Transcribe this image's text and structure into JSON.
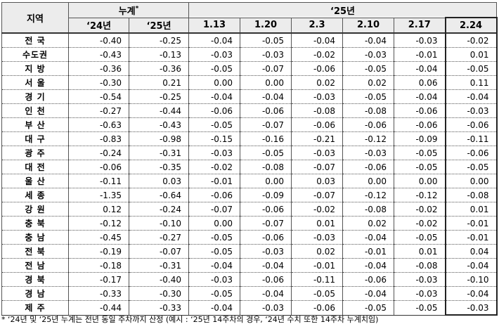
{
  "table": {
    "header": {
      "region": "지역",
      "cumulative": "누계",
      "cumulative_mark": "*",
      "year": "‘25년",
      "columns": [
        "‘24년",
        "‘25년",
        "1.13",
        "1.20",
        "2.3",
        "2.10",
        "2.17",
        "2.24"
      ]
    },
    "rows": [
      {
        "region": "전 국",
        "values": [
          "-0.40",
          "-0.25",
          "-0.04",
          "-0.05",
          "-0.04",
          "-0.04",
          "-0.03",
          "-0.02"
        ]
      },
      {
        "region": "수도권",
        "values": [
          "-0.43",
          "-0.13",
          "-0.03",
          "-0.03",
          "-0.02",
          "-0.03",
          "-0.01",
          "0.01"
        ]
      },
      {
        "region": "지 방",
        "values": [
          "-0.36",
          "-0.36",
          "-0.05",
          "-0.07",
          "-0.06",
          "-0.05",
          "-0.04",
          "-0.05"
        ]
      },
      {
        "region": "서 울",
        "values": [
          "-0.30",
          "0.21",
          "0.00",
          "0.00",
          "0.02",
          "0.02",
          "0.06",
          "0.11"
        ]
      },
      {
        "region": "경 기",
        "values": [
          "-0.54",
          "-0.25",
          "-0.04",
          "-0.04",
          "-0.03",
          "-0.05",
          "-0.04",
          "-0.04"
        ]
      },
      {
        "region": "인 천",
        "values": [
          "-0.27",
          "-0.44",
          "-0.06",
          "-0.06",
          "-0.08",
          "-0.08",
          "-0.06",
          "-0.03"
        ]
      },
      {
        "region": "부 산",
        "values": [
          "-0.63",
          "-0.43",
          "-0.05",
          "-0.07",
          "-0.06",
          "-0.06",
          "-0.06",
          "-0.06"
        ]
      },
      {
        "region": "대 구",
        "values": [
          "-0.83",
          "-0.98",
          "-0.15",
          "-0.16",
          "-0.21",
          "-0.12",
          "-0.09",
          "-0.11"
        ]
      },
      {
        "region": "광 주",
        "values": [
          "-0.24",
          "-0.31",
          "-0.03",
          "-0.05",
          "-0.03",
          "-0.03",
          "-0.05",
          "-0.06"
        ]
      },
      {
        "region": "대 전",
        "values": [
          "-0.06",
          "-0.35",
          "-0.02",
          "-0.08",
          "-0.07",
          "-0.06",
          "-0.05",
          "-0.05"
        ]
      },
      {
        "region": "울 산",
        "values": [
          "-0.11",
          "0.03",
          "-0.01",
          "0.00",
          "0.03",
          "0.00",
          "0.00",
          "0.00"
        ]
      },
      {
        "region": "세 종",
        "values": [
          "-1.35",
          "-0.64",
          "-0.06",
          "-0.09",
          "-0.07",
          "-0.12",
          "-0.12",
          "-0.08"
        ]
      },
      {
        "region": "강 원",
        "values": [
          "0.12",
          "-0.24",
          "-0.07",
          "-0.06",
          "-0.02",
          "-0.08",
          "-0.02",
          "0.01"
        ]
      },
      {
        "region": "충 북",
        "values": [
          "-0.12",
          "-0.10",
          "0.00",
          "-0.07",
          "0.01",
          "0.02",
          "-0.02",
          "-0.01"
        ]
      },
      {
        "region": "충 남",
        "values": [
          "-0.45",
          "-0.27",
          "-0.05",
          "-0.06",
          "-0.03",
          "-0.04",
          "-0.05",
          "-0.01"
        ]
      },
      {
        "region": "전 북",
        "values": [
          "-0.19",
          "-0.07",
          "-0.05",
          "-0.03",
          "0.02",
          "-0.01",
          "0.01",
          "0.04"
        ]
      },
      {
        "region": "전 남",
        "values": [
          "-0.18",
          "-0.31",
          "-0.04",
          "-0.04",
          "-0.01",
          "-0.04",
          "-0.08",
          "-0.04"
        ]
      },
      {
        "region": "경 북",
        "values": [
          "-0.17",
          "-0.40",
          "-0.03",
          "-0.06",
          "-0.11",
          "-0.06",
          "-0.03",
          "-0.10"
        ]
      },
      {
        "region": "경 남",
        "values": [
          "-0.33",
          "-0.30",
          "-0.05",
          "-0.04",
          "-0.05",
          "-0.04",
          "-0.03",
          "-0.04"
        ]
      },
      {
        "region": "제 주",
        "values": [
          "-0.44",
          "-0.33",
          "-0.04",
          "-0.03",
          "-0.06",
          "-0.05",
          "-0.05",
          "-0.03"
        ]
      }
    ]
  },
  "footnote": "* ‘24년 및 ‘25년 누계는 전년 동일 주차까지 산정 (예시 : ‘25년 14주차의 경우, ‘24년 수치 또한 14주차 누계치임)"
}
